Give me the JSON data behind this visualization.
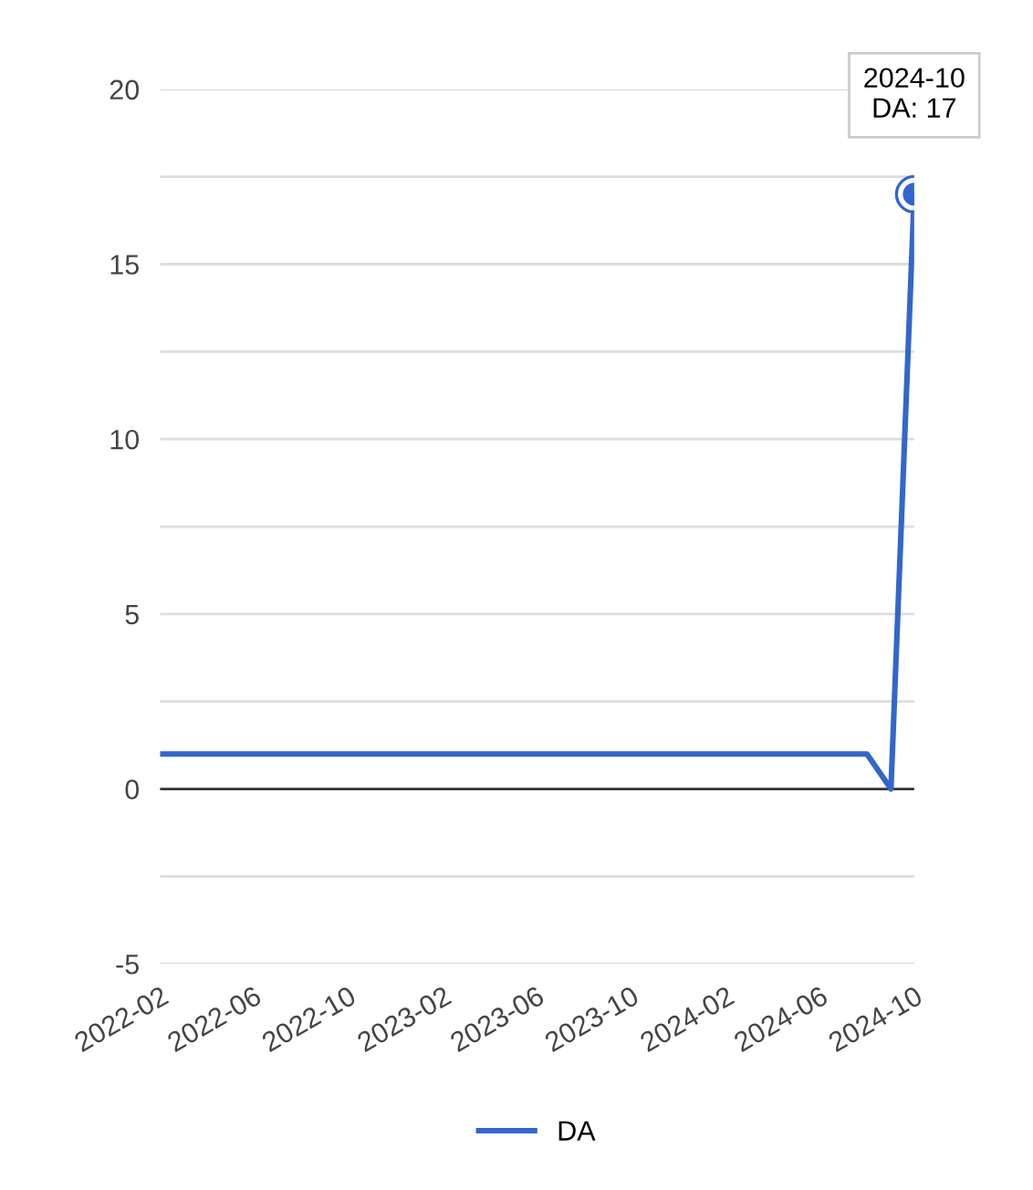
{
  "chart_data": {
    "type": "line",
    "x": [
      "2022-02",
      "2022-03",
      "2022-04",
      "2022-05",
      "2022-06",
      "2022-07",
      "2022-08",
      "2022-09",
      "2022-10",
      "2022-11",
      "2022-12",
      "2023-01",
      "2023-02",
      "2023-03",
      "2023-04",
      "2023-05",
      "2023-06",
      "2023-07",
      "2023-08",
      "2023-09",
      "2023-10",
      "2023-11",
      "2023-12",
      "2024-01",
      "2024-02",
      "2024-03",
      "2024-04",
      "2024-05",
      "2024-06",
      "2024-07",
      "2024-08",
      "2024-09",
      "2024-10"
    ],
    "series": [
      {
        "name": "DA",
        "color": "#3366cc",
        "values": [
          1,
          1,
          1,
          1,
          1,
          1,
          1,
          1,
          1,
          1,
          1,
          1,
          1,
          1,
          1,
          1,
          1,
          1,
          1,
          1,
          1,
          1,
          1,
          1,
          1,
          1,
          1,
          1,
          1,
          1,
          1,
          0,
          17
        ]
      }
    ],
    "xlim": [
      "2022-02",
      "2024-10"
    ],
    "xticks": [
      "2022-02",
      "2022-06",
      "2022-10",
      "2023-02",
      "2023-06",
      "2023-10",
      "2024-02",
      "2024-06",
      "2024-10"
    ],
    "ylim": [
      -5,
      20
    ],
    "yticks": [
      -5,
      {
        "value": -2.5,
        "label": null
      },
      0,
      {
        "value": 2.5,
        "label": null
      },
      5,
      {
        "value": 7.5,
        "label": null
      },
      10,
      {
        "value": 12.5,
        "label": null
      },
      15,
      {
        "value": 17.5,
        "label": null
      },
      20
    ],
    "ref_lines": [
      {
        "axis": "y",
        "value": 0,
        "label": null,
        "color": "#333333"
      }
    ],
    "annotations": [
      {
        "text": "2024-10\nDA: 17",
        "x": "2024-10",
        "y": 17
      }
    ],
    "grid": "y",
    "legend": "bottom",
    "line_style": "solid"
  }
}
